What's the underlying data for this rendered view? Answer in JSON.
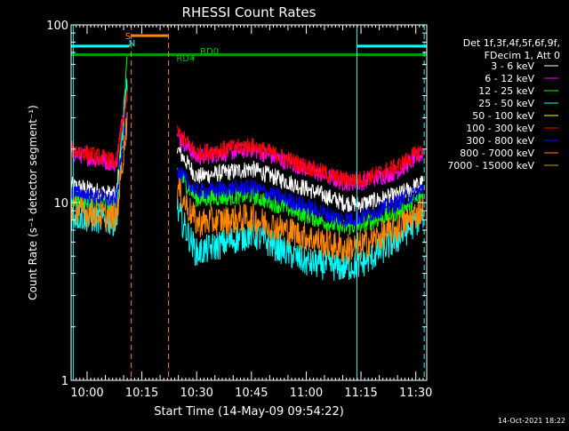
{
  "chart_data": {
    "type": "line",
    "title": "RHESSI Count Rates",
    "xlabel": "Start Time (14-May-09 09:54:22)",
    "ylabel": "Count Rate (s⁻¹ detector segment⁻¹)",
    "yscale": "log",
    "ylim": [
      1,
      100
    ],
    "xlim": [
      -4.37,
      93
    ],
    "y_ticks": [
      {
        "value": 1,
        "label": "1"
      },
      {
        "value": 10,
        "label": "10"
      },
      {
        "value": 100,
        "label": "100"
      }
    ],
    "x_ticks": [
      {
        "value": 0,
        "label": "10:00"
      },
      {
        "value": 15,
        "label": "10:15"
      },
      {
        "value": 30,
        "label": "10:30"
      },
      {
        "value": 45,
        "label": "10:45"
      },
      {
        "value": 60,
        "label": "11:00"
      },
      {
        "value": 75,
        "label": "11:15"
      },
      {
        "value": 90,
        "label": "11:30"
      }
    ],
    "legend_header": [
      "Det 1f,3f,4f,5f,6f,9f,",
      "FDecim 1, Att 0"
    ],
    "series": [
      {
        "name": "3 - 6 keV",
        "color": "#ffffff",
        "values": [
          [
            -4.37,
            12.5
          ],
          [
            8,
            11
          ],
          [
            11,
            45
          ],
          [
            12.5,
            null
          ],
          [
            24.5,
            null
          ],
          [
            24.7,
            20
          ],
          [
            30,
            14
          ],
          [
            45,
            15.5
          ],
          [
            60,
            12
          ],
          [
            70,
            10
          ],
          [
            75,
            9.8
          ],
          [
            85,
            11
          ],
          [
            92,
            13
          ]
        ]
      },
      {
        "name": "6 - 12 keV",
        "color": "#ff00ff",
        "values": [
          [
            -4.37,
            19
          ],
          [
            8,
            16.5
          ],
          [
            11,
            48
          ],
          [
            12.5,
            null
          ],
          [
            24.5,
            null
          ],
          [
            24.7,
            24
          ],
          [
            30,
            18
          ],
          [
            45,
            20
          ],
          [
            60,
            15.5
          ],
          [
            70,
            13
          ],
          [
            75,
            13
          ],
          [
            85,
            15
          ],
          [
            92,
            19
          ]
        ]
      },
      {
        "name": "12 - 25 keV",
        "color": "#00ff00",
        "values": [
          [
            -4.37,
            10.5
          ],
          [
            8,
            9.5
          ],
          [
            11,
            62
          ],
          [
            12.5,
            null
          ],
          [
            24.5,
            null
          ],
          [
            24.7,
            15
          ],
          [
            30,
            10.5
          ],
          [
            45,
            11
          ],
          [
            60,
            8.5
          ],
          [
            70,
            7.2
          ],
          [
            75,
            7.5
          ],
          [
            85,
            8.8
          ],
          [
            92,
            11
          ]
        ]
      },
      {
        "name": "25 - 50 keV",
        "color": "#00ffff",
        "values": [
          [
            -4.37,
            8.5
          ],
          [
            8,
            7.8
          ],
          [
            11,
            50
          ],
          [
            12.5,
            null
          ],
          [
            24.5,
            null
          ],
          [
            24.7,
            9
          ],
          [
            30,
            5.2
          ],
          [
            45,
            6.7
          ],
          [
            60,
            4.6
          ],
          [
            70,
            4.3
          ],
          [
            75,
            4.5
          ],
          [
            85,
            6.2
          ],
          [
            92,
            8.5
          ]
        ]
      },
      {
        "name": "50 - 100 keV",
        "color": "#ffff00",
        "values": []
      },
      {
        "name": "100 - 300 keV",
        "color": "#ff0000",
        "values": [
          [
            -4.37,
            20
          ],
          [
            8,
            17
          ],
          [
            11,
            40
          ],
          [
            12.5,
            null
          ],
          [
            24.5,
            null
          ],
          [
            24.7,
            25
          ],
          [
            30,
            19
          ],
          [
            45,
            21
          ],
          [
            60,
            16
          ],
          [
            70,
            13.5
          ],
          [
            75,
            13.5
          ],
          [
            85,
            16
          ],
          [
            92,
            20
          ]
        ]
      },
      {
        "name": "300 - 800 keV",
        "color": "#0000ff",
        "values": [
          [
            -4.37,
            11.5
          ],
          [
            8,
            10.2
          ],
          [
            11,
            35
          ],
          [
            12.5,
            null
          ],
          [
            24.5,
            null
          ],
          [
            24.7,
            15
          ],
          [
            30,
            11.5
          ],
          [
            45,
            12.2
          ],
          [
            60,
            9.5
          ],
          [
            70,
            8
          ],
          [
            75,
            8.3
          ],
          [
            85,
            10
          ],
          [
            92,
            12
          ]
        ]
      },
      {
        "name": "800 - 7000 keV",
        "color": "#ff8800",
        "values": [
          [
            -4.37,
            9.2
          ],
          [
            8,
            8.2
          ],
          [
            11,
            30
          ],
          [
            12.5,
            null
          ],
          [
            24.5,
            null
          ],
          [
            24.7,
            12
          ],
          [
            30,
            7.7
          ],
          [
            45,
            8.2
          ],
          [
            60,
            6.4
          ],
          [
            70,
            5.5
          ],
          [
            75,
            5.7
          ],
          [
            85,
            7.2
          ],
          [
            92,
            9.2
          ]
        ]
      },
      {
        "name": "7000 - 15000 keV",
        "color": "#c0a000",
        "values": []
      }
    ],
    "annotations": [
      {
        "label": "S",
        "color": "#ff8800",
        "x": 11.2
      },
      {
        "label": "N",
        "color": "#00ffff",
        "x": 12.3
      },
      {
        "label": "RD4",
        "color": "#00c000",
        "x": 27
      },
      {
        "label": "RD0",
        "color": "#00c000",
        "x": 33.5
      }
    ],
    "flag_bars": [
      {
        "name": "SAA",
        "color": "#ff8800",
        "x0": 12.1,
        "x1": 22.3,
        "y": 87
      },
      {
        "name": "Night",
        "color": "#00ffff",
        "x0": -4.37,
        "x1": 11.6,
        "y": 76
      },
      {
        "name": "Night",
        "color": "#00ffff",
        "x0": 73.9,
        "x1": 93,
        "y": 76
      },
      {
        "name": "Decimation",
        "color": "#009900",
        "x0": -4.37,
        "x1": 93,
        "y": 68
      }
    ],
    "vertical_lines": [
      {
        "color": "#00ffff",
        "style": "solid",
        "x": -3.8
      },
      {
        "color": "#ff8800",
        "style": "dashed",
        "x": 12.1
      },
      {
        "color": "#ff8800",
        "style": "dashed",
        "x": 22.3
      },
      {
        "color": "#00ffff",
        "style": "solid",
        "x": 73.9
      },
      {
        "color": "#00ffff",
        "style": "dashed",
        "x": 92.3
      }
    ]
  },
  "footer": {
    "timestamp": "14-Oct-2021 18:22"
  }
}
